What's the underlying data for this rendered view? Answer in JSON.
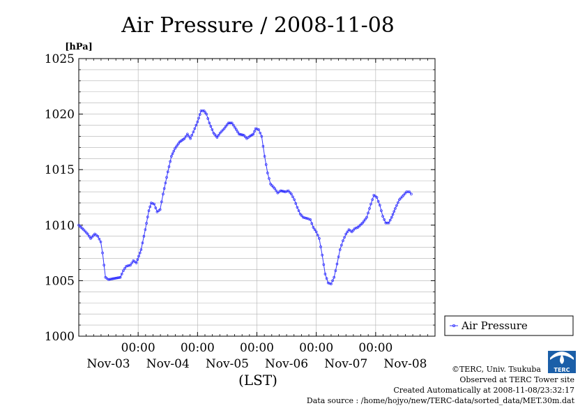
{
  "chart_data": {
    "type": "line",
    "title": "Air Pressure / 2008-11-08",
    "yunit": "[hPa]",
    "xlabel": "(LST)",
    "ylim": [
      1000,
      1025
    ],
    "yticks": [
      1000,
      1005,
      1010,
      1015,
      1020,
      1025
    ],
    "xlim": [
      0,
      6
    ],
    "x_unit": "days from Nov-03 00:00",
    "xticks": [
      {
        "x": 1,
        "time": "00:00",
        "date": "Nov-03"
      },
      {
        "x": 2,
        "time": "00:00",
        "date": "Nov-04"
      },
      {
        "x": 3,
        "time": "00:00",
        "date": "Nov-05"
      },
      {
        "x": 4,
        "time": "00:00",
        "date": "Nov-06"
      },
      {
        "x": 5,
        "time": "00:00",
        "date": "Nov-07"
      }
    ],
    "extra_date_label": "Nov-08",
    "grid": true,
    "legend_position": "right",
    "series": [
      {
        "name": "Air Pressure",
        "color": "#3333ff",
        "points": [
          [
            0.0,
            1010.0
          ],
          [
            0.08,
            1009.6
          ],
          [
            0.15,
            1009.2
          ],
          [
            0.2,
            1008.8
          ],
          [
            0.27,
            1009.2
          ],
          [
            0.32,
            1009.0
          ],
          [
            0.37,
            1008.5
          ],
          [
            0.4,
            1007.5
          ],
          [
            0.45,
            1005.3
          ],
          [
            0.5,
            1005.1
          ],
          [
            0.6,
            1005.2
          ],
          [
            0.7,
            1005.3
          ],
          [
            0.75,
            1005.9
          ],
          [
            0.8,
            1006.3
          ],
          [
            0.87,
            1006.4
          ],
          [
            0.92,
            1006.8
          ],
          [
            0.97,
            1006.6
          ],
          [
            1.05,
            1007.8
          ],
          [
            1.12,
            1009.6
          ],
          [
            1.18,
            1011.3
          ],
          [
            1.22,
            1012.0
          ],
          [
            1.27,
            1011.9
          ],
          [
            1.32,
            1011.2
          ],
          [
            1.37,
            1011.4
          ],
          [
            1.42,
            1012.8
          ],
          [
            1.5,
            1014.8
          ],
          [
            1.56,
            1016.2
          ],
          [
            1.62,
            1016.9
          ],
          [
            1.7,
            1017.5
          ],
          [
            1.78,
            1017.8
          ],
          [
            1.83,
            1018.2
          ],
          [
            1.88,
            1017.8
          ],
          [
            1.93,
            1018.4
          ],
          [
            2.0,
            1019.3
          ],
          [
            2.06,
            1020.3
          ],
          [
            2.11,
            1020.3
          ],
          [
            2.15,
            1020.0
          ],
          [
            2.2,
            1019.2
          ],
          [
            2.27,
            1018.3
          ],
          [
            2.33,
            1017.9
          ],
          [
            2.38,
            1018.3
          ],
          [
            2.45,
            1018.7
          ],
          [
            2.52,
            1019.2
          ],
          [
            2.58,
            1019.2
          ],
          [
            2.63,
            1018.8
          ],
          [
            2.7,
            1018.2
          ],
          [
            2.78,
            1018.1
          ],
          [
            2.83,
            1017.8
          ],
          [
            2.88,
            1018.0
          ],
          [
            2.94,
            1018.2
          ],
          [
            2.98,
            1018.7
          ],
          [
            3.03,
            1018.6
          ],
          [
            3.08,
            1018.0
          ],
          [
            3.13,
            1016.2
          ],
          [
            3.18,
            1014.7
          ],
          [
            3.23,
            1013.7
          ],
          [
            3.3,
            1013.3
          ],
          [
            3.35,
            1012.9
          ],
          [
            3.4,
            1013.1
          ],
          [
            3.48,
            1013.0
          ],
          [
            3.53,
            1013.1
          ],
          [
            3.58,
            1012.8
          ],
          [
            3.63,
            1012.3
          ],
          [
            3.68,
            1011.6
          ],
          [
            3.73,
            1011.0
          ],
          [
            3.78,
            1010.7
          ],
          [
            3.85,
            1010.6
          ],
          [
            3.9,
            1010.5
          ],
          [
            3.95,
            1009.8
          ],
          [
            4.0,
            1009.4
          ],
          [
            4.05,
            1008.8
          ],
          [
            4.1,
            1007.3
          ],
          [
            4.15,
            1005.6
          ],
          [
            4.2,
            1004.8
          ],
          [
            4.25,
            1004.7
          ],
          [
            4.3,
            1005.3
          ],
          [
            4.35,
            1006.5
          ],
          [
            4.4,
            1007.8
          ],
          [
            4.45,
            1008.6
          ],
          [
            4.5,
            1009.2
          ],
          [
            4.55,
            1009.6
          ],
          [
            4.6,
            1009.4
          ],
          [
            4.65,
            1009.7
          ],
          [
            4.7,
            1009.8
          ],
          [
            4.78,
            1010.2
          ],
          [
            4.85,
            1010.7
          ],
          [
            4.92,
            1011.9
          ],
          [
            4.97,
            1012.7
          ],
          [
            5.02,
            1012.5
          ],
          [
            5.07,
            1011.8
          ],
          [
            5.12,
            1010.8
          ],
          [
            5.17,
            1010.2
          ],
          [
            5.22,
            1010.2
          ],
          [
            5.27,
            1010.7
          ],
          [
            5.33,
            1011.5
          ],
          [
            5.4,
            1012.3
          ],
          [
            5.47,
            1012.7
          ],
          [
            5.52,
            1013.0
          ],
          [
            5.57,
            1013.0
          ],
          [
            5.6,
            1012.8
          ]
        ]
      }
    ]
  },
  "credits": {
    "copyright": "©TERC, Univ. Tsukuba",
    "observed": "Observed at TERC Tower site",
    "created": "Created Automatically at 2008-11-08/23:32:17",
    "source": "Data source : /home/hojyo/new/TERC-data/sorted_data/MET.30m.dat"
  },
  "logo": {
    "text": "TERC",
    "color": "#1b5fa8"
  }
}
